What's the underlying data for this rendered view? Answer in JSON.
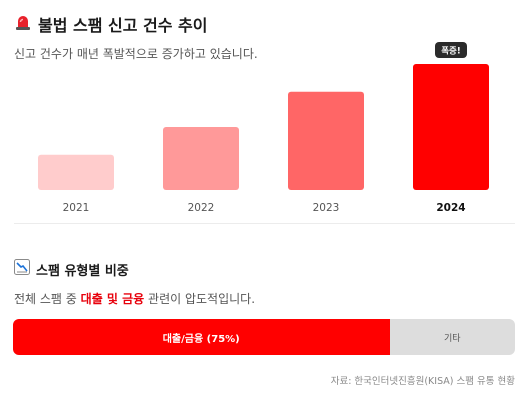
{
  "section1": {
    "icon": "siren-icon",
    "title": "불법 스팸 신고 건수 추이",
    "subtitle": "신고 건수가 매년 폭발적으로 증가하고 있습니다."
  },
  "chart_data": [
    {
      "type": "bar",
      "title": "불법 스팸 신고 건수 추이",
      "categories": [
        "2021",
        "2022",
        "2023",
        "2024"
      ],
      "values": [
        28,
        50,
        78,
        100
      ],
      "colors": [
        "#ffcccc",
        "#ff9999",
        "#ff6666",
        "#ff0000"
      ],
      "highlight_index": 3,
      "annotation": "폭증!",
      "grid": false,
      "legend": "none"
    },
    {
      "type": "bar",
      "orientation": "horizontal-stacked",
      "title": "스팸 유형별 비중",
      "segments": [
        {
          "name": "대출/금융",
          "label": "대출/금융 (75%)",
          "value": 75,
          "color": "#ff0000"
        },
        {
          "name": "기타",
          "label": "기타",
          "value": 25,
          "color": "#dddddd"
        }
      ]
    }
  ],
  "section2": {
    "icon": "chart-decreasing-icon",
    "title": "스팸 유형별 비중",
    "subtitle_pre": "전체 스팸 중 ",
    "subtitle_highlight": "대출 및 금융",
    "subtitle_post": " 관련이 압도적입니다."
  },
  "source": "자료: 한국인터넷진흥원(KISA) 스팸 유통 현황"
}
